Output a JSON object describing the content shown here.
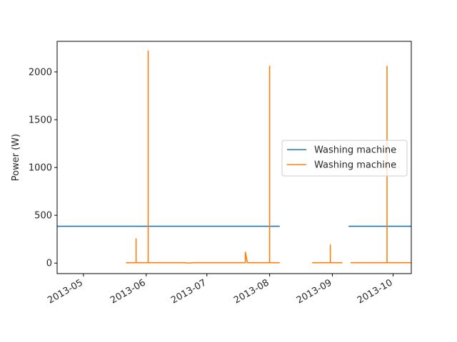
{
  "chart_data": {
    "type": "line",
    "xlabel": "",
    "ylabel": "Power (W)",
    "x_range": [
      "2013-04-18",
      "2013-10-10"
    ],
    "ylim": [
      -110,
      2320
    ],
    "x_ticks": [
      "2013-05",
      "2013-06",
      "2013-07",
      "2013-08",
      "2013-09",
      "2013-10"
    ],
    "y_ticks": [
      0,
      500,
      1000,
      1500,
      2000
    ],
    "legend_position": "center-right",
    "grid": false,
    "series": [
      {
        "name": "Washing machine",
        "color": "#1f77b4",
        "segments": [
          [
            [
              "2013-04-18",
              385
            ],
            [
              "2013-08-06",
              385
            ]
          ],
          [
            [
              "2013-09-09",
              385
            ],
            [
              "2013-10-10",
              385
            ]
          ]
        ]
      },
      {
        "name": "Washing machine",
        "color": "#ff7f0e",
        "segments": [
          [
            [
              "2013-05-22",
              4
            ],
            [
              "2013-05-27",
              4
            ],
            [
              "2013-05-27",
              255
            ],
            [
              "2013-05-27",
              4
            ],
            [
              "2013-06-02",
              4
            ],
            [
              "2013-06-02",
              2220
            ],
            [
              "2013-06-02",
              4
            ],
            [
              "2013-06-20",
              4
            ],
            [
              "2013-06-22",
              0
            ],
            [
              "2013-06-24",
              4
            ],
            [
              "2013-07-20",
              4
            ],
            [
              "2013-07-20",
              115
            ],
            [
              "2013-07-21",
              4
            ],
            [
              "2013-08-01",
              4
            ],
            [
              "2013-08-01",
              2060
            ],
            [
              "2013-08-01",
              4
            ],
            [
              "2013-08-06",
              4
            ]
          ],
          [
            [
              "2013-08-22",
              4
            ],
            [
              "2013-08-31",
              4
            ],
            [
              "2013-08-31",
              190
            ],
            [
              "2013-08-31",
              4
            ],
            [
              "2013-09-06",
              4
            ]
          ],
          [
            [
              "2013-09-10",
              4
            ],
            [
              "2013-09-28",
              4
            ],
            [
              "2013-09-28",
              2060
            ],
            [
              "2013-09-28",
              4
            ],
            [
              "2013-10-10",
              4
            ]
          ]
        ]
      }
    ]
  }
}
